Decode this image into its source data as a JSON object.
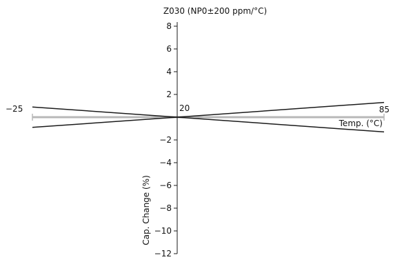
{
  "chart_data": {
    "type": "line",
    "title": "Z030 (NP0±200 ppm/°C)",
    "xlabel": "Temp. (°C)",
    "ylabel": "Cap. Change (%)",
    "xlim": [
      -25,
      85
    ],
    "ylim": [
      -12,
      8
    ],
    "x_ticks": [
      {
        "value": -25,
        "label": "−25"
      },
      {
        "value": 20,
        "label": "20"
      },
      {
        "value": 85,
        "label": "85"
      }
    ],
    "y_ticks": [
      {
        "value": 8,
        "label": "8"
      },
      {
        "value": 6,
        "label": "6"
      },
      {
        "value": 4,
        "label": "4"
      },
      {
        "value": 2,
        "label": "2"
      },
      {
        "value": -2,
        "label": "−2"
      },
      {
        "value": -4,
        "label": "−4"
      },
      {
        "value": -6,
        "label": "−6"
      },
      {
        "value": -8,
        "label": "−8"
      },
      {
        "value": -10,
        "label": "−10"
      },
      {
        "value": -12,
        "label": "−12"
      }
    ],
    "series": [
      {
        "x": [
          -25,
          20,
          85
        ],
        "y": [
          0.9,
          0,
          1.3
        ]
      },
      {
        "x": [
          -25,
          20,
          85
        ],
        "y": [
          -0.9,
          0,
          -1.3
        ]
      }
    ],
    "grid": false,
    "colors": {
      "series": "#1a1a1a",
      "axis": "#1a1a1a",
      "x_axis": "#b8b8b8"
    }
  }
}
